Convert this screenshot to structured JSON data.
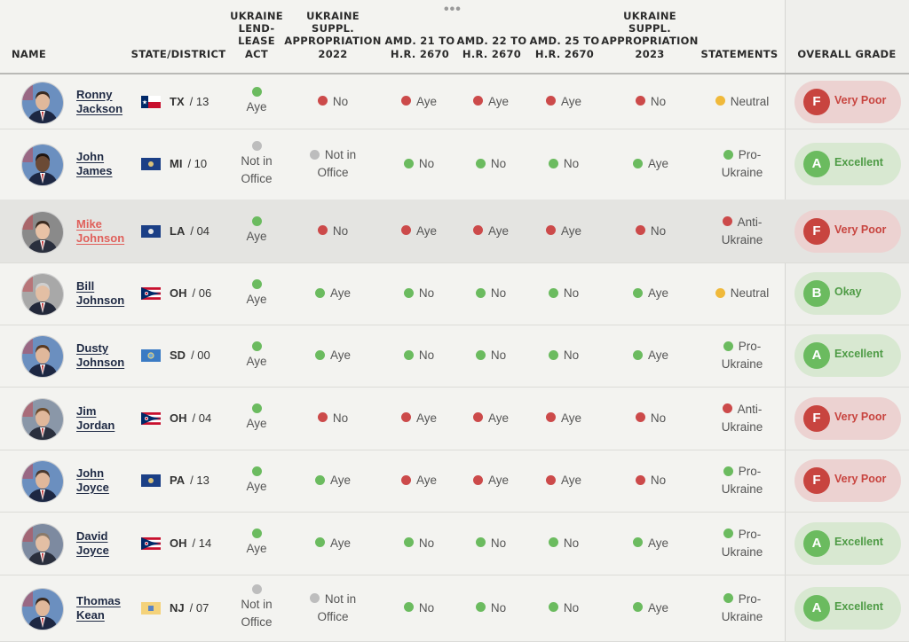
{
  "colors": {
    "red": "#cc4a4a",
    "green": "#6bbb5f",
    "gray": "#bdbdbd",
    "yellow": "#f0b93a",
    "grade_red_bg": "#ecd2d1",
    "grade_red_circle": "#c8443f",
    "grade_red_text": "#c8443f",
    "grade_green_bg": "#d8e8d1",
    "grade_green_circle": "#6bbb5f",
    "grade_green_text": "#4e9b45"
  },
  "header": {
    "more_icon": "more-horizontal-icon",
    "columns": [
      {
        "key": "name",
        "label": "NAME"
      },
      {
        "key": "state",
        "label": "STATE/DISTRICT"
      },
      {
        "key": "lend",
        "label": "UKRAINE\nLEND-\nLEASE\nACT"
      },
      {
        "key": "supp22",
        "label": "UKRAINE\nSUPPL.\nAPPROPRIATION\n2022"
      },
      {
        "key": "amd21",
        "label": "AMD. 21 TO\nH.R. 2670"
      },
      {
        "key": "amd22",
        "label": "AMD. 22 TO\nH.R. 2670"
      },
      {
        "key": "amd25",
        "label": "AMD. 25 TO\nH.R. 2670"
      },
      {
        "key": "supp23",
        "label": "UKRAINE\nSUPPL.\nAPPROPRIATION\n2023"
      },
      {
        "key": "statements",
        "label": "STATEMENTS"
      },
      {
        "key": "grade",
        "label": "OVERALL GRADE"
      }
    ]
  },
  "rows": [
    {
      "name": "Ronny\nJackson",
      "state": "TX",
      "district": "/ 13",
      "flag": "texas-flag-icon",
      "avatar": "avatar-ronny-jackson",
      "votes": [
        {
          "label": "Aye",
          "color": "green"
        },
        {
          "label": "No",
          "color": "red"
        },
        {
          "label": "Aye",
          "color": "red"
        },
        {
          "label": "Aye",
          "color": "red"
        },
        {
          "label": "Aye",
          "color": "red"
        },
        {
          "label": "No",
          "color": "red"
        }
      ],
      "statement": {
        "label": "Neutral",
        "color": "yellow"
      },
      "grade": {
        "letter": "F",
        "label": "Very Poor",
        "tone": "red"
      }
    },
    {
      "name": "John\nJames",
      "state": "MI",
      "district": "/ 10",
      "flag": "michigan-flag-icon",
      "avatar": "avatar-john-james",
      "votes": [
        {
          "label": "Not in\nOffice",
          "color": "gray"
        },
        {
          "label": "Not in\nOffice",
          "color": "gray"
        },
        {
          "label": "No",
          "color": "green"
        },
        {
          "label": "No",
          "color": "green"
        },
        {
          "label": "No",
          "color": "green"
        },
        {
          "label": "Aye",
          "color": "green"
        }
      ],
      "statement": {
        "label": "Pro-\nUkraine",
        "color": "green"
      },
      "grade": {
        "letter": "A",
        "label": "Excellent",
        "tone": "green"
      }
    },
    {
      "name": "Mike\nJohnson",
      "state": "LA",
      "district": "/ 04",
      "flag": "louisiana-flag-icon",
      "avatar": "avatar-mike-johnson",
      "active": true,
      "votes": [
        {
          "label": "Aye",
          "color": "green"
        },
        {
          "label": "No",
          "color": "red"
        },
        {
          "label": "Aye",
          "color": "red"
        },
        {
          "label": "Aye",
          "color": "red"
        },
        {
          "label": "Aye",
          "color": "red"
        },
        {
          "label": "No",
          "color": "red"
        }
      ],
      "statement": {
        "label": "Anti-\nUkraine",
        "color": "red"
      },
      "grade": {
        "letter": "F",
        "label": "Very Poor",
        "tone": "red"
      }
    },
    {
      "name": "Bill\nJohnson",
      "state": "OH",
      "district": "/ 06",
      "flag": "ohio-flag-icon",
      "avatar": "avatar-bill-johnson",
      "votes": [
        {
          "label": "Aye",
          "color": "green"
        },
        {
          "label": "Aye",
          "color": "green"
        },
        {
          "label": "No",
          "color": "green"
        },
        {
          "label": "No",
          "color": "green"
        },
        {
          "label": "No",
          "color": "green"
        },
        {
          "label": "Aye",
          "color": "green"
        }
      ],
      "statement": {
        "label": "Neutral",
        "color": "yellow"
      },
      "grade": {
        "letter": "B",
        "label": "Okay",
        "tone": "green"
      }
    },
    {
      "name": "Dusty\nJohnson",
      "state": "SD",
      "district": "/ 00",
      "flag": "south-dakota-flag-icon",
      "avatar": "avatar-dusty-johnson",
      "votes": [
        {
          "label": "Aye",
          "color": "green"
        },
        {
          "label": "Aye",
          "color": "green"
        },
        {
          "label": "No",
          "color": "green"
        },
        {
          "label": "No",
          "color": "green"
        },
        {
          "label": "No",
          "color": "green"
        },
        {
          "label": "Aye",
          "color": "green"
        }
      ],
      "statement": {
        "label": "Pro-\nUkraine",
        "color": "green"
      },
      "grade": {
        "letter": "A",
        "label": "Excellent",
        "tone": "green"
      }
    },
    {
      "name": "Jim\nJordan",
      "state": "OH",
      "district": "/ 04",
      "flag": "ohio-flag-icon",
      "avatar": "avatar-jim-jordan",
      "votes": [
        {
          "label": "Aye",
          "color": "green"
        },
        {
          "label": "No",
          "color": "red"
        },
        {
          "label": "Aye",
          "color": "red"
        },
        {
          "label": "Aye",
          "color": "red"
        },
        {
          "label": "Aye",
          "color": "red"
        },
        {
          "label": "No",
          "color": "red"
        }
      ],
      "statement": {
        "label": "Anti-\nUkraine",
        "color": "red"
      },
      "grade": {
        "letter": "F",
        "label": "Very Poor",
        "tone": "red"
      }
    },
    {
      "name": "John\nJoyce",
      "state": "PA",
      "district": "/ 13",
      "flag": "pennsylvania-flag-icon",
      "avatar": "avatar-john-joyce",
      "votes": [
        {
          "label": "Aye",
          "color": "green"
        },
        {
          "label": "Aye",
          "color": "green"
        },
        {
          "label": "Aye",
          "color": "red"
        },
        {
          "label": "Aye",
          "color": "red"
        },
        {
          "label": "Aye",
          "color": "red"
        },
        {
          "label": "No",
          "color": "red"
        }
      ],
      "statement": {
        "label": "Pro-\nUkraine",
        "color": "green"
      },
      "grade": {
        "letter": "F",
        "label": "Very Poor",
        "tone": "red"
      }
    },
    {
      "name": "David\nJoyce",
      "state": "OH",
      "district": "/ 14",
      "flag": "ohio-flag-icon",
      "avatar": "avatar-david-joyce",
      "votes": [
        {
          "label": "Aye",
          "color": "green"
        },
        {
          "label": "Aye",
          "color": "green"
        },
        {
          "label": "No",
          "color": "green"
        },
        {
          "label": "No",
          "color": "green"
        },
        {
          "label": "No",
          "color": "green"
        },
        {
          "label": "Aye",
          "color": "green"
        }
      ],
      "statement": {
        "label": "Pro-\nUkraine",
        "color": "green"
      },
      "grade": {
        "letter": "A",
        "label": "Excellent",
        "tone": "green"
      }
    },
    {
      "name": "Thomas\nKean",
      "state": "NJ",
      "district": "/ 07",
      "flag": "new-jersey-flag-icon",
      "avatar": "avatar-thomas-kean",
      "votes": [
        {
          "label": "Not in\nOffice",
          "color": "gray"
        },
        {
          "label": "Not in\nOffice",
          "color": "gray"
        },
        {
          "label": "No",
          "color": "green"
        },
        {
          "label": "No",
          "color": "green"
        },
        {
          "label": "No",
          "color": "green"
        },
        {
          "label": "Aye",
          "color": "green"
        }
      ],
      "statement": {
        "label": "Pro-\nUkraine",
        "color": "green"
      },
      "grade": {
        "letter": "A",
        "label": "Excellent",
        "tone": "green"
      }
    }
  ]
}
